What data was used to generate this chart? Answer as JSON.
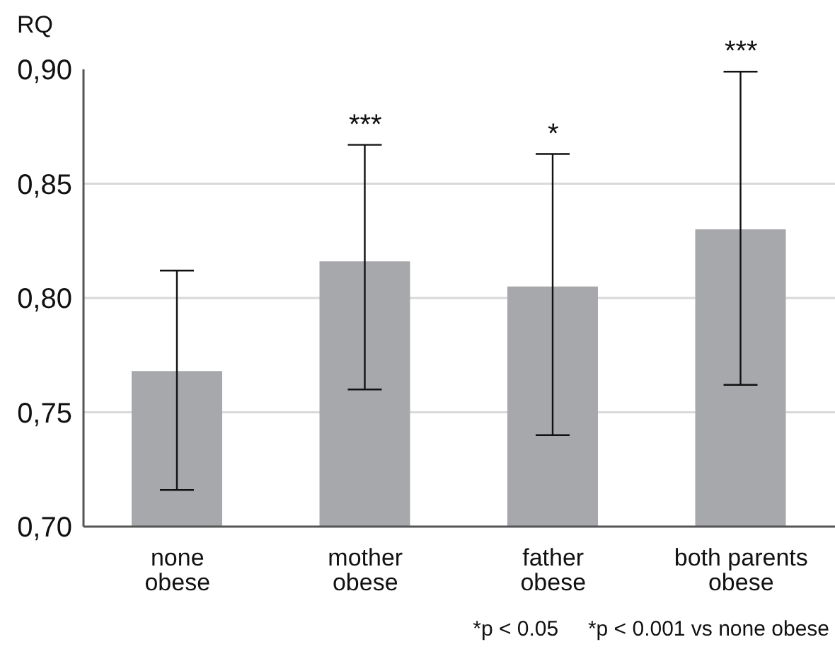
{
  "chart_data": {
    "type": "bar",
    "ylabel": "RQ",
    "categories": [
      "none obese",
      "mother obese",
      "father obese",
      "both parents obese"
    ],
    "values": [
      0.768,
      0.816,
      0.805,
      0.83
    ],
    "color": "#a7a8ab",
    "errors": [
      [
        0.716,
        0.812
      ],
      [
        0.76,
        0.867
      ],
      [
        0.74,
        0.863
      ],
      [
        0.762,
        0.899
      ]
    ],
    "ylim": [
      0.7,
      0.9
    ],
    "yticks": [
      {
        "value": 0.7,
        "label": "0,70"
      },
      {
        "value": 0.75,
        "label": "0,75"
      },
      {
        "value": 0.8,
        "label": "0,80"
      },
      {
        "value": 0.85,
        "label": "0,85"
      },
      {
        "value": 0.9,
        "label": "0,90"
      }
    ],
    "grid": "y",
    "annotations": [
      {
        "text": "***",
        "x": "mother obese",
        "y": 0.867
      },
      {
        "text": "*",
        "x": "father obese",
        "y": 0.863
      },
      {
        "text": "***",
        "x": "both parents obese",
        "y": 0.899
      },
      "*p < 0.05     *p < 0.001 vs none obese"
    ]
  }
}
